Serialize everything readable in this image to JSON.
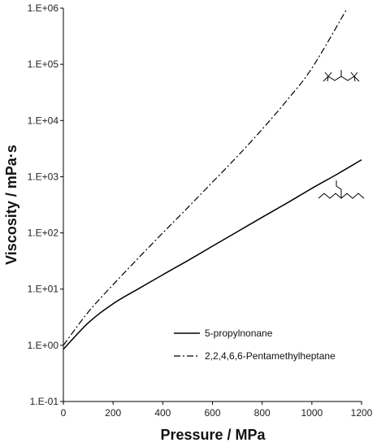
{
  "chart_data": {
    "type": "line",
    "title": "",
    "xlabel": "Pressure / MPa",
    "ylabel": "Viscosity / mPa·s",
    "xlim": [
      0,
      1200
    ],
    "ylim": [
      0.1,
      1000000
    ],
    "yscale": "log",
    "grid": false,
    "legend_position": "bottom-right",
    "x_ticks": [
      0,
      200,
      400,
      600,
      800,
      1000,
      1200
    ],
    "x_tick_labels": [
      "0",
      "200",
      "400",
      "600",
      "800",
      "1000",
      "1200"
    ],
    "y_ticks": [
      0.1,
      1,
      10,
      100,
      1000,
      10000,
      100000,
      1000000
    ],
    "y_tick_labels": [
      "1.E-01",
      "1.E+00",
      "1.E+01",
      "1.E+02",
      "1.E+03",
      "1.E+04",
      "1.E+05",
      "1.E+06"
    ],
    "series": [
      {
        "name": "5-propylnonane",
        "style": "solid",
        "color": "#000000",
        "x": [
          0,
          100,
          200,
          300,
          400,
          500,
          600,
          700,
          800,
          900,
          1000,
          1100,
          1200
        ],
        "y": [
          0.85,
          2.5,
          5.5,
          10,
          18,
          32,
          58,
          105,
          190,
          340,
          620,
          1100,
          2000
        ]
      },
      {
        "name": "2,2,4,6,6-Pentamethylheptane",
        "style": "dash-dot",
        "color": "#000000",
        "x": [
          0,
          100,
          200,
          300,
          400,
          500,
          600,
          700,
          800,
          900,
          1000,
          1140
        ],
        "y": [
          1.0,
          3.9,
          12,
          35,
          100,
          280,
          800,
          2300,
          7000,
          23000,
          85000,
          950000
        ]
      }
    ]
  }
}
